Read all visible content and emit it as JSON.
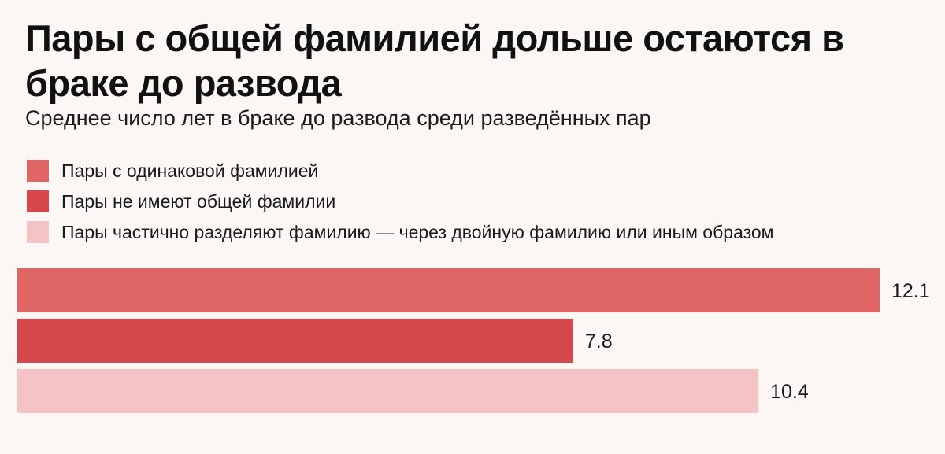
{
  "header": {
    "title": "Пары с общей фамилией дольше остаются в браке до развода",
    "subtitle": "Среднее число лет в браке до развода среди разведённых пар"
  },
  "chart_data": {
    "type": "bar",
    "orientation": "horizontal",
    "title": "Пары с общей фамилией дольше остаются в браке до развода",
    "subtitle": "Среднее число лет в браке до развода среди разведённых пар",
    "xlabel": "",
    "ylabel": "",
    "grid": false,
    "legend_position": "top-left",
    "xlim": [
      0,
      12.1
    ],
    "series": [
      {
        "name": "Пары с одинаковой фамилией",
        "value": 12.1,
        "label": "12.1",
        "color": "#e06666"
      },
      {
        "name": "Пары не имеют общей фамилии",
        "value": 7.8,
        "label": "7.8",
        "color": "#d4474b"
      },
      {
        "name": "Пары частично разделяют фамилию — через двойную фамилию или иным образом",
        "value": 10.4,
        "label": "10.4",
        "color": "#f4c3c5"
      }
    ]
  }
}
